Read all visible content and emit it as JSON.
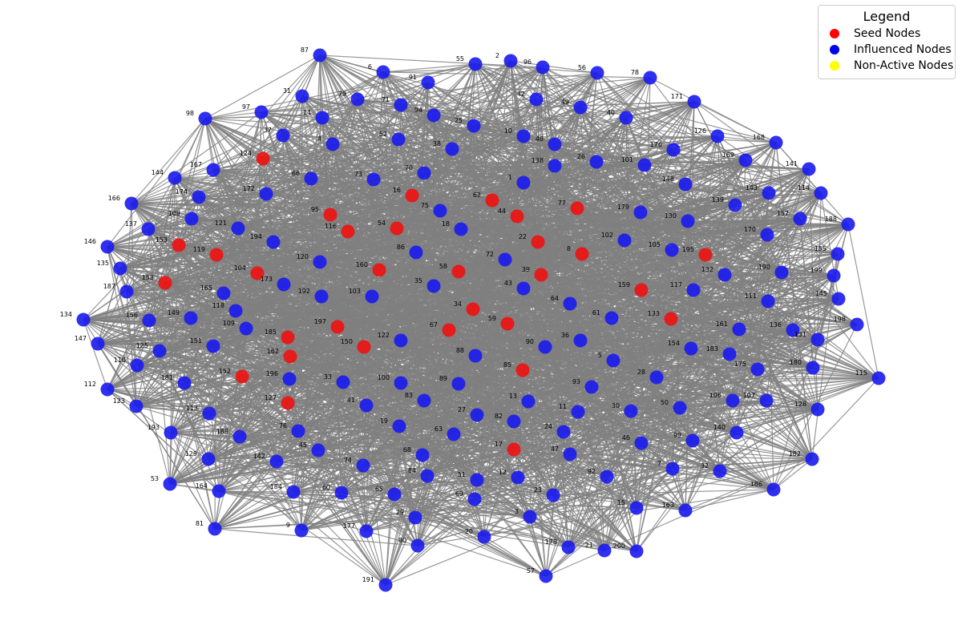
{
  "colors": {
    "seed": "#ee1111",
    "influenced": "#1a1aee",
    "non_active": "#ffff00",
    "edge": "#808080"
  },
  "legend": {
    "title": "Legend",
    "items": [
      {
        "label": "Seed Nodes",
        "color": "#ff0000"
      },
      {
        "label": "Influenced Nodes",
        "color": "#0000ee"
      },
      {
        "label": "Non-Active Nodes",
        "color": "#ffff00"
      }
    ]
  },
  "chart_data": {
    "type": "network",
    "title": "",
    "node_ids": [
      "1",
      "2",
      "3",
      "4",
      "5",
      "6",
      "7",
      "8",
      "9",
      "10",
      "11",
      "12",
      "13",
      "14",
      "15",
      "16",
      "17",
      "18",
      "19",
      "20",
      "21",
      "22",
      "23",
      "24",
      "25",
      "26",
      "27",
      "28",
      "29",
      "30",
      "31",
      "32",
      "33",
      "34",
      "35",
      "36",
      "37",
      "38",
      "39",
      "40",
      "41",
      "42",
      "43",
      "44",
      "45",
      "46",
      "47",
      "48",
      "49",
      "50",
      "51",
      "52",
      "53",
      "54",
      "55",
      "56",
      "57",
      "58",
      "59",
      "60",
      "61",
      "62",
      "63",
      "64",
      "65",
      "66",
      "67",
      "68",
      "69",
      "70",
      "71",
      "72",
      "73",
      "74",
      "75",
      "76",
      "77",
      "78",
      "79",
      "80",
      "81",
      "82",
      "83",
      "84",
      "85",
      "86",
      "87",
      "88",
      "89",
      "90",
      "91",
      "92",
      "93",
      "94",
      "95",
      "96",
      "97",
      "98",
      "99",
      "100",
      "101",
      "102",
      "103",
      "104",
      "105",
      "106",
      "107",
      "108",
      "109",
      "110",
      "111",
      "112",
      "113",
      "114",
      "115",
      "116",
      "117",
      "118",
      "119",
      "120",
      "121",
      "122",
      "123",
      "124",
      "125",
      "126",
      "127",
      "128",
      "129",
      "130",
      "131",
      "132",
      "133",
      "134",
      "135",
      "136",
      "137",
      "138",
      "139",
      "140",
      "141",
      "142",
      "143",
      "144",
      "145",
      "146",
      "147",
      "148",
      "149",
      "150",
      "151",
      "152",
      "153",
      "154",
      "155",
      "156",
      "157",
      "158",
      "159",
      "160",
      "161",
      "162",
      "163",
      "164",
      "165",
      "166",
      "167",
      "168",
      "169",
      "170",
      "171",
      "172",
      "173",
      "174",
      "175",
      "176",
      "177",
      "178",
      "179",
      "180",
      "181",
      "182",
      "183",
      "184",
      "185",
      "186",
      "187",
      "188",
      "189",
      "190",
      "191",
      "192",
      "193",
      "194",
      "195",
      "196",
      "197",
      "198",
      "199",
      "200"
    ],
    "seed_nodes": [
      "8",
      "16",
      "17",
      "22",
      "34",
      "39",
      "44",
      "54",
      "58",
      "59",
      "62",
      "67",
      "77",
      "85",
      "95",
      "104",
      "116",
      "119",
      "124",
      "127",
      "133",
      "150",
      "152",
      "153",
      "158",
      "159",
      "160",
      "162",
      "185",
      "195",
      "197"
    ],
    "non_active_nodes": [],
    "edge_description": "dense random graph"
  }
}
